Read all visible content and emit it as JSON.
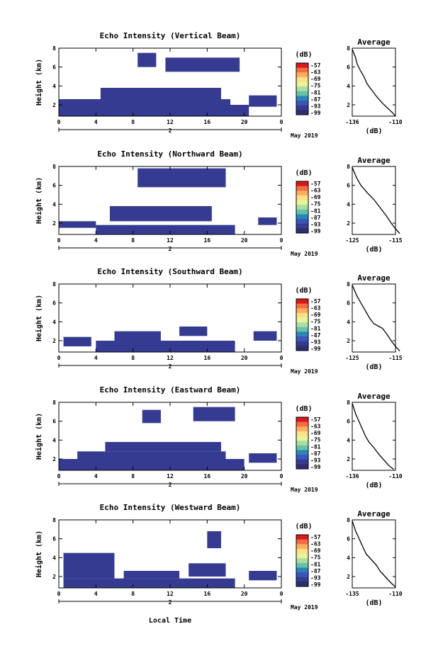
{
  "x_axis_label": "Local Time",
  "avg_title": "Average",
  "colorbar": {
    "unit": "(dB)",
    "labels": [
      "-57",
      "-63",
      "-69",
      "-75",
      "-81",
      "-87",
      "-93",
      "-99"
    ],
    "colors": [
      "#d7191c",
      "#f46d43",
      "#fdae61",
      "#fee08b",
      "#e6f598",
      "#abdda4",
      "#66c2a5",
      "#2b83ba",
      "#3b56b8",
      "#353b90",
      "#2e2e6e"
    ]
  },
  "date_label": "May 2019",
  "day_marker": "2",
  "chart_data": [
    {
      "type": "heatmap",
      "title": "Echo Intensity (Vertical Beam)",
      "ylabel": "Height (km)",
      "xticks": [
        "0",
        "4",
        "8",
        "12",
        "16",
        "20",
        "0"
      ],
      "yticks": [
        "2",
        "4",
        "6",
        "8"
      ],
      "xlim": [
        0,
        24
      ],
      "ylim": [
        0.8,
        8
      ],
      "fill_color": "#353b90",
      "blocks": [
        {
          "x": [
            0,
            20.5
          ],
          "y": [
            0.8,
            2.0
          ]
        },
        {
          "x": [
            0,
            18.5
          ],
          "y": [
            2.0,
            2.6
          ]
        },
        {
          "x": [
            4.5,
            17.5
          ],
          "y": [
            2.6,
            3.8
          ]
        },
        {
          "x": [
            20.5,
            23.5
          ],
          "y": [
            1.8,
            3.0
          ]
        },
        {
          "x": [
            8.5,
            10.5
          ],
          "y": [
            6.0,
            7.5
          ]
        },
        {
          "x": [
            11.5,
            19.5
          ],
          "y": [
            5.5,
            7.0
          ]
        }
      ],
      "avg_profile": {
        "xlabel": "(dB)",
        "xticks": [
          "-136",
          "-110"
        ],
        "yticks": [
          "2",
          "4",
          "6",
          "8"
        ],
        "x": [
          -136,
          -134,
          -133,
          -131,
          -129,
          -127,
          -124,
          -121,
          -118,
          -115,
          -112,
          -110
        ],
        "y": [
          7.9,
          7.0,
          6.3,
          5.6,
          5.0,
          4.2,
          3.5,
          2.8,
          2.2,
          1.7,
          1.2,
          0.8
        ]
      }
    },
    {
      "type": "heatmap",
      "title": "Echo Intensity (Northward Beam)",
      "ylabel": "Height (km)",
      "xticks": [
        "0",
        "4",
        "8",
        "12",
        "16",
        "20",
        "0"
      ],
      "yticks": [
        "2",
        "4",
        "6",
        "8"
      ],
      "xlim": [
        0,
        24
      ],
      "ylim": [
        0.8,
        8
      ],
      "fill_color": "#353b90",
      "blocks": [
        {
          "x": [
            4.0,
            19.0
          ],
          "y": [
            0.8,
            1.8
          ]
        },
        {
          "x": [
            0,
            4.0
          ],
          "y": [
            1.5,
            2.2
          ]
        },
        {
          "x": [
            5.5,
            16.5
          ],
          "y": [
            2.2,
            3.8
          ]
        },
        {
          "x": [
            21.5,
            23.5
          ],
          "y": [
            1.8,
            2.6
          ]
        },
        {
          "x": [
            8.5,
            18.0
          ],
          "y": [
            5.8,
            7.8
          ]
        }
      ],
      "avg_profile": {
        "xlabel": "(dB)",
        "xticks": [
          "-125",
          "-115"
        ],
        "yticks": [
          "2",
          "4",
          "6",
          "8"
        ],
        "x": [
          -125,
          -124,
          -123,
          -121.5,
          -120,
          -119,
          -118,
          -117,
          -116,
          -115,
          -114
        ],
        "y": [
          7.9,
          6.8,
          6.0,
          5.2,
          4.5,
          3.9,
          3.3,
          2.7,
          2.0,
          1.4,
          0.9
        ]
      }
    },
    {
      "type": "heatmap",
      "title": "Echo Intensity (Southward Beam)",
      "ylabel": "Height (km)",
      "xticks": [
        "0",
        "4",
        "8",
        "12",
        "16",
        "20",
        "0"
      ],
      "yticks": [
        "2",
        "4",
        "6",
        "8"
      ],
      "xlim": [
        0,
        24
      ],
      "ylim": [
        0.8,
        8
      ],
      "fill_color": "#353b90",
      "blocks": [
        {
          "x": [
            4.0,
            19.0
          ],
          "y": [
            0.8,
            2.0
          ]
        },
        {
          "x": [
            0.5,
            3.5
          ],
          "y": [
            1.4,
            2.4
          ]
        },
        {
          "x": [
            6.0,
            11.0
          ],
          "y": [
            2.0,
            3.0
          ]
        },
        {
          "x": [
            13.0,
            16.0
          ],
          "y": [
            2.5,
            3.5
          ]
        },
        {
          "x": [
            21.0,
            23.5
          ],
          "y": [
            2.0,
            3.0
          ]
        }
      ],
      "avg_profile": {
        "xlabel": "(dB)",
        "xticks": [
          "-125",
          "-115"
        ],
        "yticks": [
          "2",
          "4",
          "6",
          "8"
        ],
        "x": [
          -125,
          -124,
          -123,
          -122,
          -121,
          -120,
          -118,
          -117,
          -116,
          -115,
          -114
        ],
        "y": [
          7.9,
          6.8,
          6.0,
          5.2,
          4.4,
          3.8,
          3.3,
          2.7,
          2.0,
          1.4,
          0.9
        ]
      }
    },
    {
      "type": "heatmap",
      "title": "Echo Intensity (Eastward Beam)",
      "ylabel": "Height (km)",
      "xticks": [
        "0",
        "4",
        "8",
        "12",
        "16",
        "20",
        "0"
      ],
      "yticks": [
        "2",
        "4",
        "6",
        "8"
      ],
      "xlim": [
        0,
        24
      ],
      "ylim": [
        0.8,
        8
      ],
      "fill_color": "#353b90",
      "blocks": [
        {
          "x": [
            0,
            20.0
          ],
          "y": [
            0.8,
            2.0
          ]
        },
        {
          "x": [
            2.0,
            18.0
          ],
          "y": [
            2.0,
            2.8
          ]
        },
        {
          "x": [
            5.0,
            17.5
          ],
          "y": [
            2.8,
            3.8
          ]
        },
        {
          "x": [
            20.5,
            23.5
          ],
          "y": [
            1.6,
            2.6
          ]
        },
        {
          "x": [
            9.0,
            11.0
          ],
          "y": [
            5.8,
            7.2
          ]
        },
        {
          "x": [
            14.5,
            19.0
          ],
          "y": [
            6.0,
            7.5
          ]
        }
      ],
      "avg_profile": {
        "xlabel": "(dB)",
        "xticks": [
          "-136",
          "-110"
        ],
        "yticks": [
          "2",
          "4",
          "6",
          "8"
        ],
        "x": [
          -136,
          -134,
          -132,
          -130,
          -128,
          -126,
          -123,
          -120,
          -117,
          -114,
          -111
        ],
        "y": [
          7.9,
          6.8,
          6.0,
          5.2,
          4.4,
          3.8,
          3.2,
          2.5,
          1.9,
          1.3,
          0.9
        ]
      }
    },
    {
      "type": "heatmap",
      "title": "Echo Intensity (Westward Beam)",
      "ylabel": "Height (km)",
      "xticks": [
        "0",
        "4",
        "8",
        "12",
        "16",
        "20",
        "0"
      ],
      "yticks": [
        "2",
        "4",
        "6",
        "8"
      ],
      "xlim": [
        0,
        24
      ],
      "ylim": [
        0.8,
        8
      ],
      "fill_color": "#353b90",
      "blocks": [
        {
          "x": [
            0.5,
            19.0
          ],
          "y": [
            0.8,
            1.8
          ]
        },
        {
          "x": [
            0.5,
            6.0
          ],
          "y": [
            1.8,
            4.5
          ]
        },
        {
          "x": [
            7.0,
            13.0
          ],
          "y": [
            1.8,
            2.6
          ]
        },
        {
          "x": [
            14.0,
            18.0
          ],
          "y": [
            2.0,
            3.4
          ]
        },
        {
          "x": [
            20.5,
            23.5
          ],
          "y": [
            1.6,
            2.6
          ]
        },
        {
          "x": [
            16.0,
            17.5
          ],
          "y": [
            5.0,
            6.8
          ]
        }
      ],
      "avg_profile": {
        "xlabel": "(dB)",
        "xticks": [
          "-135",
          "-110"
        ],
        "yticks": [
          "2",
          "4",
          "6",
          "8"
        ],
        "x": [
          -135,
          -133,
          -131,
          -129,
          -127,
          -124,
          -121,
          -119,
          -116,
          -113,
          -110
        ],
        "y": [
          7.9,
          6.8,
          6.0,
          5.2,
          4.4,
          3.8,
          3.2,
          2.6,
          2.0,
          1.4,
          0.9
        ]
      }
    }
  ]
}
